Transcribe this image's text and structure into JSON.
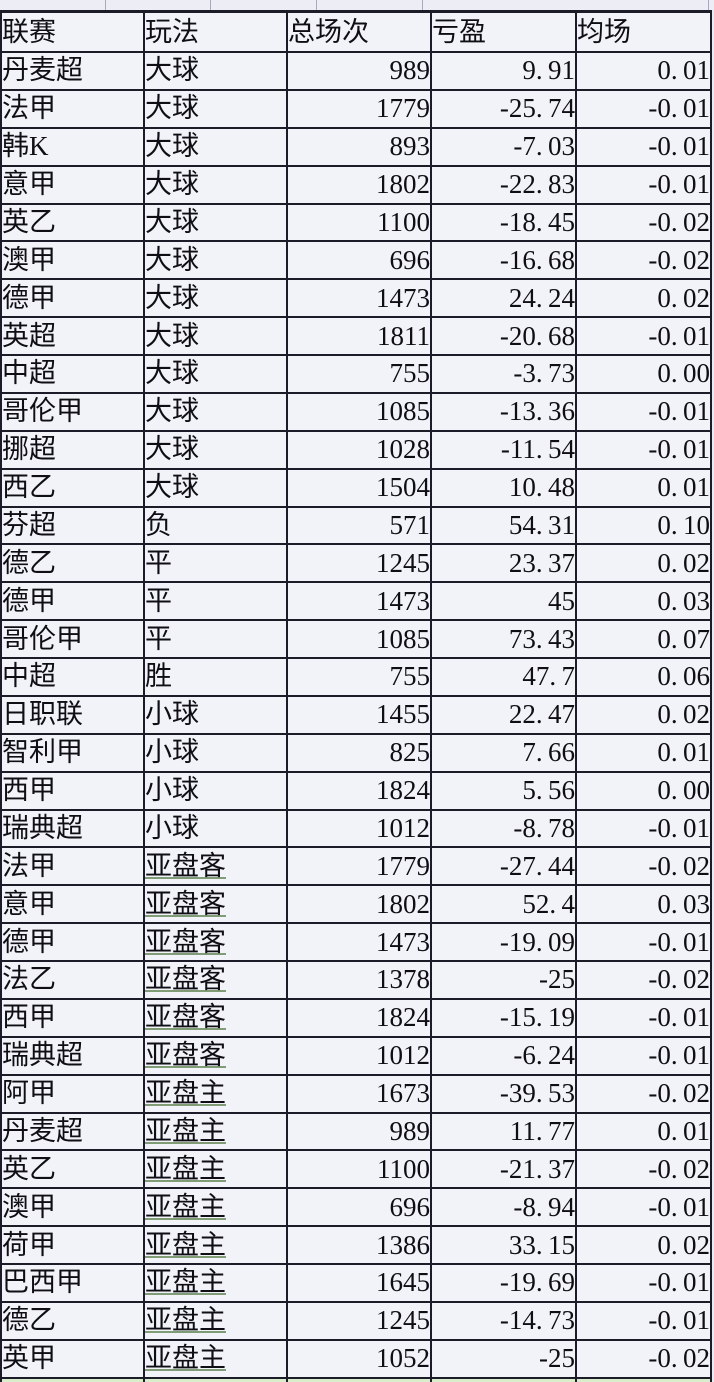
{
  "table": {
    "columns": [
      {
        "key": "league",
        "label": "联赛",
        "align": "left"
      },
      {
        "key": "play",
        "label": "玩法",
        "align": "left"
      },
      {
        "key": "total",
        "label": "总场次",
        "align": "right"
      },
      {
        "key": "pnl",
        "label": "亏盈",
        "align": "right"
      },
      {
        "key": "avg",
        "label": "均场",
        "align": "right"
      }
    ],
    "underlined_play_values": [
      "亚盘客",
      "亚盘主"
    ],
    "rows": [
      [
        "丹麦超",
        "大球",
        "989",
        "9.91",
        "0.01"
      ],
      [
        "法甲",
        "大球",
        "1779",
        "-25.74",
        "-0.01"
      ],
      [
        "韩K",
        "大球",
        "893",
        "-7.03",
        "-0.01"
      ],
      [
        "意甲",
        "大球",
        "1802",
        "-22.83",
        "-0.01"
      ],
      [
        "英乙",
        "大球",
        "1100",
        "-18.45",
        "-0.02"
      ],
      [
        "澳甲",
        "大球",
        "696",
        "-16.68",
        "-0.02"
      ],
      [
        "德甲",
        "大球",
        "1473",
        "24.24",
        "0.02"
      ],
      [
        "英超",
        "大球",
        "1811",
        "-20.68",
        "-0.01"
      ],
      [
        "中超",
        "大球",
        "755",
        "-3.73",
        "0.00"
      ],
      [
        "哥伦甲",
        "大球",
        "1085",
        "-13.36",
        "-0.01"
      ],
      [
        "挪超",
        "大球",
        "1028",
        "-11.54",
        "-0.01"
      ],
      [
        "西乙",
        "大球",
        "1504",
        "10.48",
        "0.01"
      ],
      [
        "芬超",
        "负",
        "571",
        "54.31",
        "0.10"
      ],
      [
        "德乙",
        "平",
        "1245",
        "23.37",
        "0.02"
      ],
      [
        "德甲",
        "平",
        "1473",
        "45",
        "0.03"
      ],
      [
        "哥伦甲",
        "平",
        "1085",
        "73.43",
        "0.07"
      ],
      [
        "中超",
        "胜",
        "755",
        "47.7",
        "0.06"
      ],
      [
        "日职联",
        "小球",
        "1455",
        "22.47",
        "0.02"
      ],
      [
        "智利甲",
        "小球",
        "825",
        "7.66",
        "0.01"
      ],
      [
        "西甲",
        "小球",
        "1824",
        "5.56",
        "0.00"
      ],
      [
        "瑞典超",
        "小球",
        "1012",
        "-8.78",
        "-0.01"
      ],
      [
        "法甲",
        "亚盘客",
        "1779",
        "-27.44",
        "-0.02"
      ],
      [
        "意甲",
        "亚盘客",
        "1802",
        "52.4",
        "0.03"
      ],
      [
        "德甲",
        "亚盘客",
        "1473",
        "-19.09",
        "-0.01"
      ],
      [
        "法乙",
        "亚盘客",
        "1378",
        "-25",
        "-0.02"
      ],
      [
        "西甲",
        "亚盘客",
        "1824",
        "-15.19",
        "-0.01"
      ],
      [
        "瑞典超",
        "亚盘客",
        "1012",
        "-6.24",
        "-0.01"
      ],
      [
        "阿甲",
        "亚盘主",
        "1673",
        "-39.53",
        "-0.02"
      ],
      [
        "丹麦超",
        "亚盘主",
        "989",
        "11.77",
        "0.01"
      ],
      [
        "英乙",
        "亚盘主",
        "1100",
        "-21.37",
        "-0.02"
      ],
      [
        "澳甲",
        "亚盘主",
        "696",
        "-8.94",
        "-0.01"
      ],
      [
        "荷甲",
        "亚盘主",
        "1386",
        "33.15",
        "0.02"
      ],
      [
        "巴西甲",
        "亚盘主",
        "1645",
        "-19.69",
        "-0.01"
      ],
      [
        "德乙",
        "亚盘主",
        "1245",
        "-14.73",
        "-0.01"
      ],
      [
        "英甲",
        "亚盘主",
        "1052",
        "-25",
        "-0.02"
      ]
    ]
  },
  "colors": {
    "border": "#1c1c28",
    "cell_bg": "#f2f3f9",
    "page_bg": "#e9eaf2",
    "top_strip_bg": "#edeef5",
    "bottom_strip_green": "#d9eccc",
    "underline_green": "#7f9c74",
    "text": "#0e0e14",
    "gridline_grey": "#a6aabb"
  }
}
